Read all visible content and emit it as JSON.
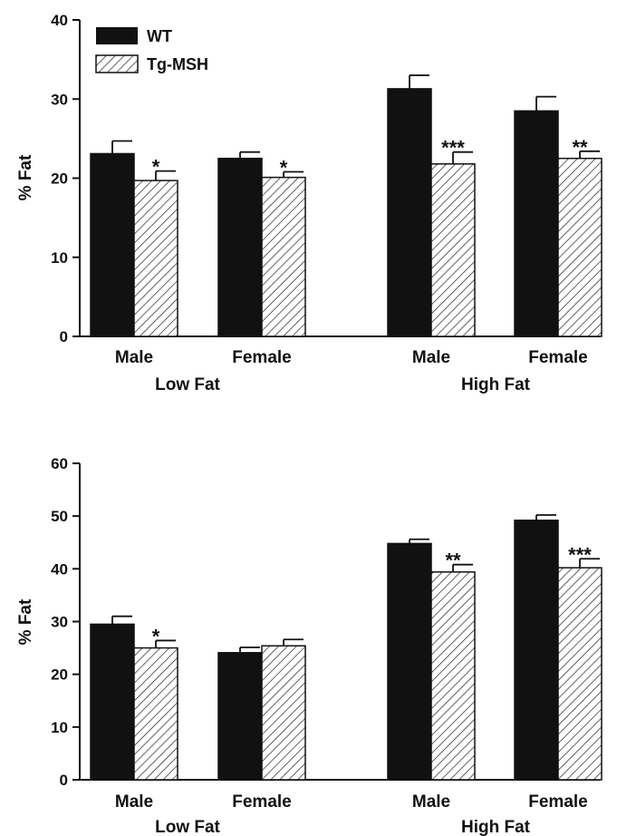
{
  "legend": [
    {
      "label": "WT",
      "style": "solid"
    },
    {
      "label": "Tg-MSH",
      "style": "hatched"
    }
  ],
  "chart_data": [
    {
      "type": "bar",
      "ylabel": "% Fat",
      "ylim": [
        0,
        40
      ],
      "yticks": [
        0,
        10,
        20,
        30,
        40
      ],
      "groups": [
        {
          "label": "Low Fat",
          "categories": [
            "Male",
            "Female"
          ]
        },
        {
          "label": "High Fat",
          "categories": [
            "Male",
            "Female"
          ]
        }
      ],
      "categories": [
        "Male",
        "Female",
        "Male",
        "Female"
      ],
      "series": [
        {
          "name": "WT",
          "color": "#111111",
          "values": [
            23.1,
            22.5,
            31.3,
            28.5
          ],
          "errors": [
            1.6,
            0.8,
            1.7,
            1.8
          ]
        },
        {
          "name": "Tg-MSH",
          "color": "#ffffff",
          "values": [
            19.7,
            20.1,
            21.8,
            22.5
          ],
          "errors": [
            1.2,
            0.7,
            1.5,
            0.9
          ]
        }
      ],
      "significance": [
        "*",
        "*",
        "***",
        "**"
      ]
    },
    {
      "type": "bar",
      "ylabel": "% Fat",
      "ylim": [
        0,
        60
      ],
      "yticks": [
        0,
        10,
        20,
        30,
        40,
        50,
        60
      ],
      "groups": [
        {
          "label": "Low Fat",
          "categories": [
            "Male",
            "Female"
          ]
        },
        {
          "label": "High Fat",
          "categories": [
            "Male",
            "Female"
          ]
        }
      ],
      "categories": [
        "Male",
        "Female",
        "Male",
        "Female"
      ],
      "series": [
        {
          "name": "WT",
          "color": "#111111",
          "values": [
            29.5,
            24.1,
            44.8,
            49.2
          ],
          "errors": [
            1.5,
            1.0,
            0.8,
            1.0
          ]
        },
        {
          "name": "Tg-MSH",
          "color": "#ffffff",
          "values": [
            25.0,
            25.4,
            39.4,
            40.2
          ],
          "errors": [
            1.4,
            1.2,
            1.4,
            1.7
          ]
        }
      ],
      "significance": [
        "*",
        "",
        "**",
        "***"
      ]
    }
  ]
}
